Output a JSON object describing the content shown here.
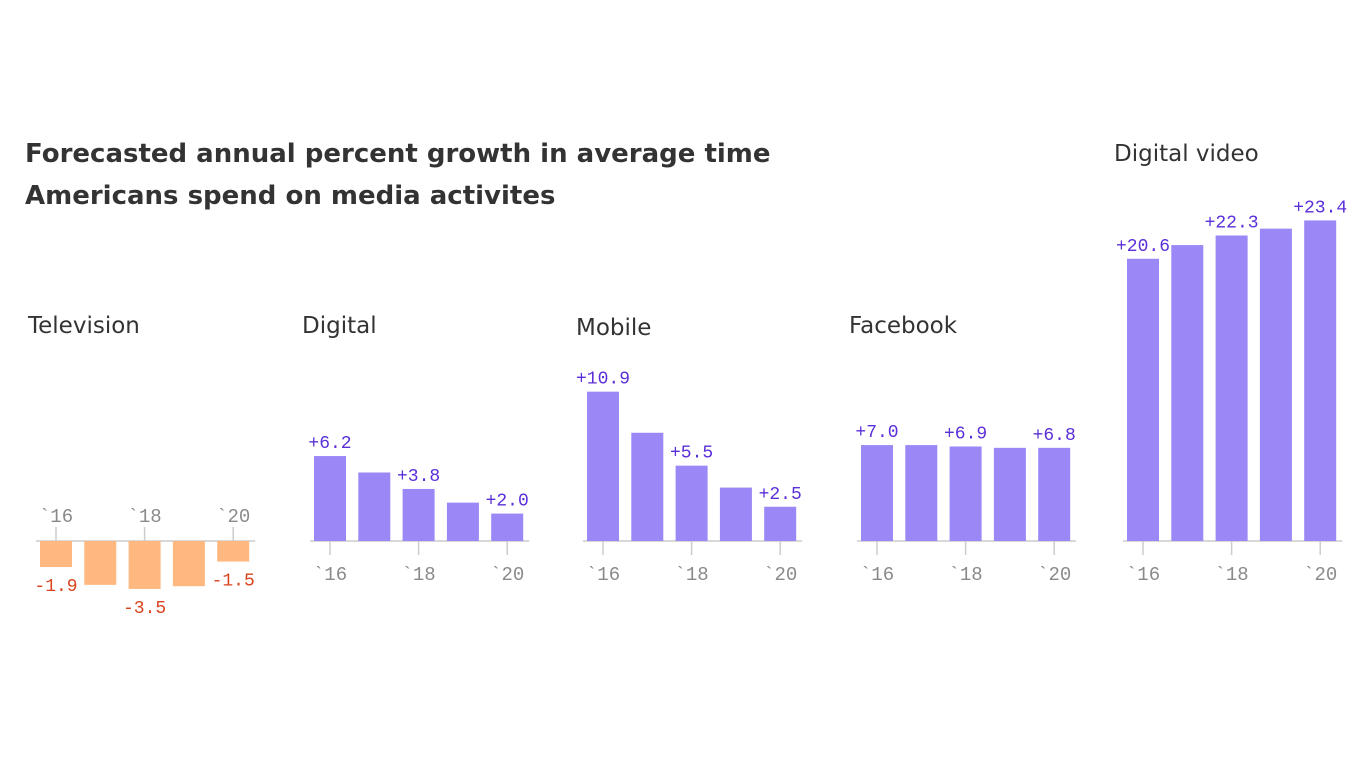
{
  "title_lines": [
    "Forecasted annual percent growth in average time",
    "Americans spend on media activites"
  ],
  "colors": {
    "positive_bar": "#9b87f5",
    "positive_text": "#5b2fd8",
    "negative_bar": "#ffb880",
    "negative_text": "#d9431e",
    "axis": "#cccccc",
    "tick_text": "#8a8a8a"
  },
  "chart_data": [
    {
      "type": "bar",
      "title": "Television",
      "categories": [
        "`16",
        "`17",
        "`18",
        "`19",
        "`20"
      ],
      "tick_labels": [
        "`16",
        "`18",
        "`20"
      ],
      "values": [
        -1.9,
        -3.2,
        -3.5,
        -3.3,
        -1.5
      ],
      "data_labels": [
        "-1.9",
        "",
        "-3.5",
        "",
        "-1.5"
      ]
    },
    {
      "type": "bar",
      "title": "Digital",
      "categories": [
        "`16",
        "`17",
        "`18",
        "`19",
        "`20"
      ],
      "tick_labels": [
        "`16",
        "`18",
        "`20"
      ],
      "values": [
        6.2,
        5.0,
        3.8,
        2.8,
        2.0
      ],
      "data_labels": [
        "+6.2",
        "",
        "+3.8",
        "",
        "+2.0"
      ]
    },
    {
      "type": "bar",
      "title": "Mobile",
      "categories": [
        "`16",
        "`17",
        "`18",
        "`19",
        "`20"
      ],
      "tick_labels": [
        "`16",
        "`18",
        "`20"
      ],
      "values": [
        10.9,
        7.9,
        5.5,
        3.9,
        2.5
      ],
      "data_labels": [
        "+10.9",
        "",
        "+5.5",
        "",
        "+2.5"
      ]
    },
    {
      "type": "bar",
      "title": "Facebook",
      "categories": [
        "`16",
        "`17",
        "`18",
        "`19",
        "`20"
      ],
      "tick_labels": [
        "`16",
        "`18",
        "`20"
      ],
      "values": [
        7.0,
        7.0,
        6.9,
        6.8,
        6.8
      ],
      "data_labels": [
        "+7.0",
        "",
        "+6.9",
        "",
        "+6.8"
      ]
    },
    {
      "type": "bar",
      "title": "Digital video",
      "categories": [
        "`16",
        "`17",
        "`18",
        "`19",
        "`20"
      ],
      "tick_labels": [
        "`16",
        "`18",
        "`20"
      ],
      "values": [
        20.6,
        21.6,
        22.3,
        22.8,
        23.4
      ],
      "data_labels": [
        "+20.6",
        "",
        "+22.3",
        "",
        "+23.4"
      ]
    }
  ]
}
